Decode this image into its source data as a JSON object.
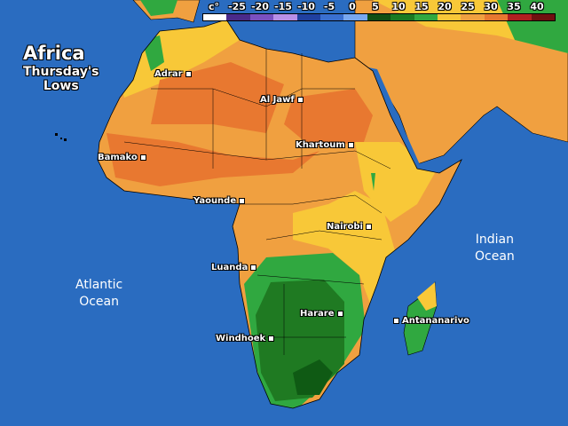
{
  "title": "Africa",
  "subtitle": [
    "Thursday's",
    "Lows"
  ],
  "legend": {
    "unit": "c°",
    "labels": [
      "-25",
      "-20",
      "-15",
      "-10",
      "-5",
      "0",
      "5",
      "10",
      "15",
      "20",
      "25",
      "30",
      "35",
      "40"
    ],
    "colors": [
      "#ffffff",
      "#4a2a8a",
      "#7a50c0",
      "#b890e8",
      "#2040a0",
      "#3a70d0",
      "#78a8f0",
      "#0f4f14",
      "#1a7a22",
      "#30a840",
      "#f8c838",
      "#f0a040",
      "#e87830",
      "#b02020",
      "#701010"
    ]
  },
  "oceans": [
    {
      "label": [
        "Atlantic",
        "Ocean"
      ]
    },
    {
      "label": [
        "Indian",
        "Ocean"
      ]
    }
  ],
  "cities": [
    {
      "name": "Adrar"
    },
    {
      "name": "Al Jawf"
    },
    {
      "name": "Bamako"
    },
    {
      "name": "Khartoum"
    },
    {
      "name": "Yaounde"
    },
    {
      "name": "Nairobi"
    },
    {
      "name": "Luanda"
    },
    {
      "name": "Harare"
    },
    {
      "name": "Windhoek"
    },
    {
      "name": "Antananarivo"
    }
  ],
  "colors": {
    "ocean": "#2a6cc0",
    "orange": "#e87830",
    "light_orange": "#f0a040",
    "yellow": "#f8c838",
    "green": "#30a840",
    "dark_green": "#0f5a14",
    "mid_green": "#1f7a22"
  }
}
